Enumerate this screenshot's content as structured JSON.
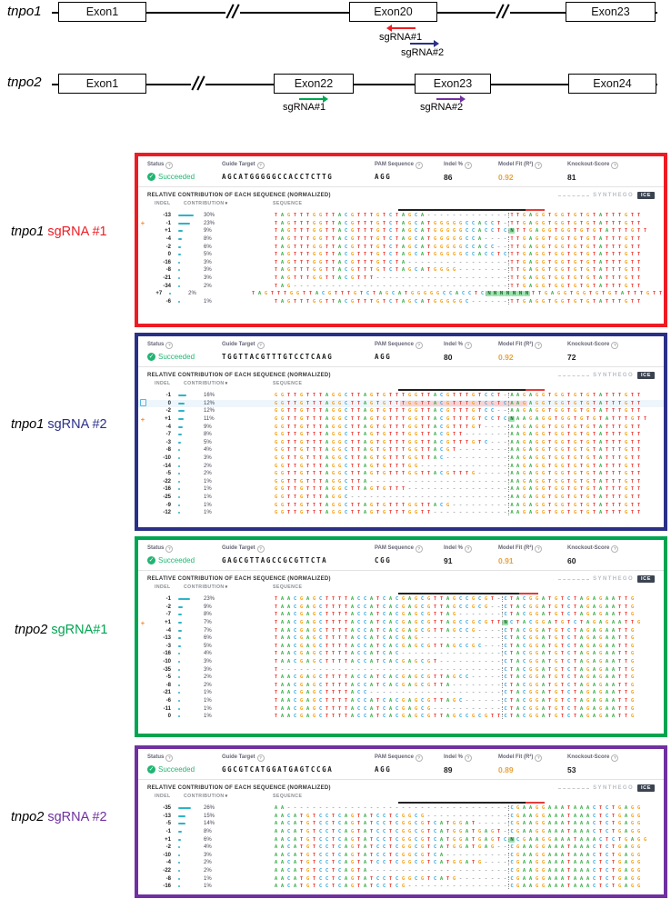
{
  "figure": {
    "genes": [
      {
        "name": "tnpo1",
        "exons": [
          "Exon1",
          "Exon20",
          "Exon23"
        ],
        "sgrna_annotations": [
          {
            "label": "sgRNA#1",
            "color": "#ed1c24",
            "direction": "left"
          },
          {
            "label": "sgRNA#2",
            "color": "#2b3087",
            "direction": "right"
          }
        ]
      },
      {
        "name": "tnpo2",
        "exons": [
          "Exon1",
          "Exon22",
          "Exon23",
          "Exon24"
        ],
        "sgrna_annotations": [
          {
            "label": "sgRNA#1",
            "color": "#00a551",
            "direction": "right"
          },
          {
            "label": "sgRNA#2",
            "color": "#7030a0",
            "direction": "right"
          }
        ]
      }
    ]
  },
  "ice": {
    "stats_labels": {
      "status": "Status",
      "guide": "Guide Target",
      "pam": "PAM Sequence",
      "indel": "Indel %",
      "fit": "Model Fit (R²)",
      "ko": "Knockout-Score"
    },
    "section_title": "RELATIVE CONTRIBUTION OF EACH SEQUENCE (NORMALIZED)",
    "columns": {
      "indel": "INDEL",
      "contribution": "CONTRIBUTION",
      "sequence": "SEQUENCE"
    },
    "sort_indicator": "▾",
    "logo": {
      "brand": "SYNTHEGO",
      "product": "ICE"
    }
  },
  "panels": [
    {
      "label_gene": "tnpo1",
      "label_guide": "sgRNA #1",
      "accent": "#ed1c24",
      "status": "Succeeded",
      "guide_target": "AGCATGGGGGCCACCTCTTG",
      "pam": "AGG",
      "indel_pct": "86",
      "model_fit": "0.92",
      "knockout_score": "81",
      "cut_index": 37,
      "guide_range": [
        20,
        40
      ],
      "pam_range": [
        40,
        43
      ],
      "rows": [
        {
          "indel": "-13",
          "contribution": 30,
          "seq": "TAGTTTGGTTACGTTTGTCTAGCA-------------TTGAGGTGGTGTGTATTTGTT"
        },
        {
          "indel": "-1",
          "contribution": 23,
          "marker": "+",
          "seq": "TAGTTTGGTTACGTTTGTCTAGCATGGGGGCCACCT-TTGAGGTGGTGTGTATTTGTT"
        },
        {
          "indel": "+1",
          "contribution": 9,
          "seq": "TAGTTTGGTTACGTTTGTCTAGCATGGGGGCCACCTCNTTGAGGTGGTGTGTATTTGTT"
        },
        {
          "indel": "-4",
          "contribution": 8,
          "seq": "TAGTTTGGTTACGTTTGTCTAGCATGGGGGCCA----TTGAGGTGGTGTGTATTTGTT"
        },
        {
          "indel": "-2",
          "contribution": 6,
          "seq": "TAGTTTGGTTACGTTTGTCTAGCATGGGGGCCACC--TTGAGGTGGTGTGTATTTGTT"
        },
        {
          "indel": "0",
          "contribution": 5,
          "seq": "TAGTTTGGTTACGTTTGTCTAGCATGGGGGCCACCTCTTGAGGTGGTGTGTATTTGTT"
        },
        {
          "indel": "-16",
          "contribution": 3,
          "seq": "TAGTTTGGTTACGTTTGTCTA----------------TTGAGGTGGTGTGTATTTGTT"
        },
        {
          "indel": "-8",
          "contribution": 3,
          "seq": "TAGTTTGGTTACGTTTGTCTAGCATGGGG--------TTGAGGTGGTGTGTATTTGTT"
        },
        {
          "indel": "-21",
          "contribution": 3,
          "seq": "TAGTTTGGTTACGTTT---------------------TTGAGGTGGTGTGTATTTGTT"
        },
        {
          "indel": "-34",
          "contribution": 2,
          "seq": "TAG----------------------------------TTGAGGTGGTGTGTATTTGTT"
        },
        {
          "indel": "+7",
          "contribution": 2,
          "seq": "TAGTTTGGTTACGTTTGTCTAGCATGGGGGCCACCTCNNNNNNNTTGAGGTGGTGTGTATTTGTT"
        },
        {
          "indel": "-6",
          "contribution": 1,
          "seq": "TAGTTTGGTTACGTTTGTCTAGCATGGGGGC------TTGAGGTGGTGTGTATTTGTT"
        }
      ]
    },
    {
      "label_gene": "tnpo1",
      "label_guide": "sgRNA #2",
      "accent": "#2b3087",
      "status": "Succeeded",
      "guide_target": "TGGTTACGTTTGTCCTCAAG",
      "pam": "AGG",
      "indel_pct": "80",
      "model_fit": "0.92",
      "knockout_score": "72",
      "cut_index": 37,
      "guide_range": [
        20,
        40
      ],
      "pam_range": [
        40,
        43
      ],
      "rows": [
        {
          "indel": "-1",
          "contribution": 16,
          "seq": "GGTTGTTTAGGCTTAGTGTTTGGTTACGTTTGTCCT-AAGAGGTGGTGTGTATTTGTT"
        },
        {
          "indel": "0",
          "contribution": 12,
          "highlight": true,
          "seq": "GGTTGTTTAGGCTTAGTGTTTGGTTACGTTTGTCCTCAAGAGGTGGTGTGTATTTGTT"
        },
        {
          "indel": "-2",
          "contribution": 12,
          "seq": "GGTTGTTTAGGCTTAGTGTTTGGTTACGTTTGTCC--AAGAGGTGGTGTGTATTTGTT"
        },
        {
          "indel": "+1",
          "contribution": 11,
          "marker": "+",
          "seq": "GGTTGTTTAGGCTTAGTGTTTGGTTACGTTTGTCCTCNAAGAGGTGGTGTGTATTTGTT"
        },
        {
          "indel": "-4",
          "contribution": 9,
          "seq": "GGTTGTTTAGGCTTAGTGTTTGGTTACGTTTGT----AAGAGGTGGTGTGTATTTGTT"
        },
        {
          "indel": "-7",
          "contribution": 8,
          "seq": "GGTTGTTTAGGCTTAGTGTTTGGTTACGTT-------AAGAGGTGGTGTGTATTTGTT"
        },
        {
          "indel": "-3",
          "contribution": 5,
          "seq": "GGTTGTTTAGGCTTAGTGTTTGGTTACGTTTGTC---AAGAGGTGGTGTGTATTTGTT"
        },
        {
          "indel": "-8",
          "contribution": 4,
          "seq": "GGTTGTTTAGGCTTAGTGTTTGGTTACGT--------AAGAGGTGGTGTGTATTTGTT"
        },
        {
          "indel": "-10",
          "contribution": 3,
          "seq": "GGTTGTTTAGGCTTAGTGTTTGGTTAC----------AAGAGGTGGTGTGTATTTGTT"
        },
        {
          "indel": "-14",
          "contribution": 2,
          "seq": "GGTTGTTTAGGCTTAGTGTTTGG--------------AAGAGGTGGTGTGTATTTGTT"
        },
        {
          "indel": "-5",
          "contribution": 2,
          "seq": "GGTTGTTTAGGCTTAGTGTTTGGTTACGTTTG-----AAGAGGTGGTGTGTATTTGTT"
        },
        {
          "indel": "-22",
          "contribution": 1,
          "seq": "GGTTGTTTAGGCTTA----------------------AAGAGGTGGTGTGTATTTGTT"
        },
        {
          "indel": "-16",
          "contribution": 1,
          "seq": "GGTTGTTTAGGCTTAGTGTTT----------------AAGAGGTGGTGTGTATTTGTT"
        },
        {
          "indel": "-25",
          "contribution": 1,
          "seq": "GGTTGTTTAGGC-------------------------AAGAGGTGGTGTGTATTTGTT"
        },
        {
          "indel": "-9",
          "contribution": 1,
          "seq": "GGTTGTTTAGGCTTAGTGTTTGGTTACG---------AAGAGGTGGTGTGTATTTGTT"
        },
        {
          "indel": "-12",
          "contribution": 1,
          "seq": "GGTTGTTTAGGCTTAGTGTTTGGTT------------AAGAGGTGGTGTGTATTTGTT"
        }
      ]
    },
    {
      "label_gene": "tnpo2",
      "label_guide": "sgRNA#1",
      "accent": "#00a551",
      "status": "Succeeded",
      "guide_target": "GAGCGTTAGCCGCGTTCTA",
      "pam": "CGG",
      "indel_pct": "91",
      "model_fit": "0.91",
      "knockout_score": "60",
      "cut_index": 36,
      "guide_range": [
        20,
        39
      ],
      "pam_range": [
        39,
        42
      ],
      "rows": [
        {
          "indel": "-1",
          "contribution": 23,
          "seq": "TAACGAGCTTTTACCATCACGAGCGTTAGCCGCGT-CTACGGATGTCTAGAGAATTG"
        },
        {
          "indel": "-2",
          "contribution": 9,
          "seq": "TAACGAGCTTTTACCATCACGAGCGTTAGCCGCG--CTACGGATGTCTAGAGAATTG"
        },
        {
          "indel": "-7",
          "contribution": 8,
          "seq": "TAACGAGCTTTTACCATCACGAGCGTTAG-------CTACGGATGTCTAGAGAATTG"
        },
        {
          "indel": "+1",
          "contribution": 7,
          "marker": "+",
          "seq": "TAACGAGCTTTTACCATCACGAGCGTTAGCCGCGTTNCTACGGATGTCTAGAGAATTG"
        },
        {
          "indel": "-4",
          "contribution": 7,
          "seq": "TAACGAGCTTTTACCATCACGAGCGTTAGCCG----CTACGGATGTCTAGAGAATTG"
        },
        {
          "indel": "-13",
          "contribution": 6,
          "seq": "TAACGAGCTTTTACCATCACGAG-------------CTACGGATGTCTAGAGAATTG"
        },
        {
          "indel": "-3",
          "contribution": 5,
          "seq": "TAACGAGCTTTTACCATCACGAGCGTTAGCCGC---CTACGGATGTCTAGAGAATTG"
        },
        {
          "indel": "-16",
          "contribution": 4,
          "seq": "TAACGAGCTTTTACCATCAC----------------CTACGGATGTCTAGAGAATTG"
        },
        {
          "indel": "-10",
          "contribution": 3,
          "seq": "TAACGAGCTTTTACCATCACGAGCGT----------CTACGGATGTCTAGAGAATTG"
        },
        {
          "indel": "-35",
          "contribution": 3,
          "seq": "T-----------------------------------CTACGGATGTCTAGAGAATTG"
        },
        {
          "indel": "-5",
          "contribution": 2,
          "seq": "TAACGAGCTTTTACCATCACGAGCGTTAGCC-----CTACGGATGTCTAGAGAATTG"
        },
        {
          "indel": "-8",
          "contribution": 2,
          "seq": "TAACGAGCTTTTACCATCACGAGCGTTA--------CTACGGATGTCTAGAGAATTG"
        },
        {
          "indel": "-21",
          "contribution": 1,
          "seq": "TAACGAGCTTTTACC---------------------CTACGGATGTCTAGAGAATTG"
        },
        {
          "indel": "-6",
          "contribution": 1,
          "seq": "TAACGAGCTTTTACCATCACGAGCGTTAGC------CTACGGATGTCTAGAGAATTG"
        },
        {
          "indel": "-11",
          "contribution": 1,
          "seq": "TAACGAGCTTTTACCATCACGAGCG-----------CTACGGATGTCTAGAGAATTG"
        },
        {
          "indel": "0",
          "contribution": 1,
          "seq": "TAACGAGCTTTTACCATCACGAGCGTTAGCCGCGTTCTACGGATGTCTAGAGAATTG"
        }
      ]
    },
    {
      "label_gene": "tnpo2",
      "label_guide": "sgRNA #2",
      "accent": "#7030a0",
      "status": "Succeeded",
      "guide_target": "GGCGTCATGGATGAGTCCGA",
      "pam": "AGG",
      "indel_pct": "89",
      "model_fit": "0.89",
      "knockout_score": "53",
      "cut_index": 37,
      "guide_range": [
        20,
        40
      ],
      "pam_range": [
        40,
        43
      ],
      "rows": [
        {
          "indel": "-35",
          "contribution": 26,
          "seq": "AA-----------------------------------CGAAGGAAATAAACTCTGAGG"
        },
        {
          "indel": "-13",
          "contribution": 15,
          "seq": "AACATGTCCTCAGTATCCTCGGCG-------------CGAAGGAAATAAACTCTGAGG"
        },
        {
          "indel": "-5",
          "contribution": 14,
          "seq": "AACATGTCCTCAGTATCCTCGGCGTCATGGAT-----CGAAGGAAATAAACTCTGAGG"
        },
        {
          "indel": "-1",
          "contribution": 8,
          "seq": "AACATGTCCTCAGTATCCTCGGCGTCATGGATGAGT-CGAAGGAAATAAACTCTGAGG"
        },
        {
          "indel": "+1",
          "contribution": 6,
          "seq": "AACATGTCCTCAGTATCCTCGGCGTCATGGATGAGTCNCGAAGGAAATAAACTCTGAGG"
        },
        {
          "indel": "-2",
          "contribution": 4,
          "seq": "AACATGTCCTCAGTATCCTCGGCGTCATGGATGAG--CGAAGGAAATAAACTCTGAGG"
        },
        {
          "indel": "-10",
          "contribution": 3,
          "seq": "AACATGTCCTCAGTATCCTCGGCGTCA----------CGAAGGAAATAAACTCTGAGG"
        },
        {
          "indel": "-4",
          "contribution": 2,
          "seq": "AACATGTCCTCAGTATCCTCGGCGTCATGGATG----CGAAGGAAATAAACTCTGAGG"
        },
        {
          "indel": "-22",
          "contribution": 2,
          "seq": "AACATGTCCTCAGTA----------------------CGAAGGAAATAAACTCTGAGG"
        },
        {
          "indel": "-8",
          "contribution": 1,
          "seq": "AACATGTCCTCAGTATCCTCGGCGTCATG--------CGAAGGAAATAAACTCTGAGG"
        },
        {
          "indel": "-16",
          "contribution": 1,
          "seq": "AACATGTCCTCAGTATCCTCG----------------CGAAGGAAATAAACTCTGAGG"
        }
      ]
    }
  ]
}
